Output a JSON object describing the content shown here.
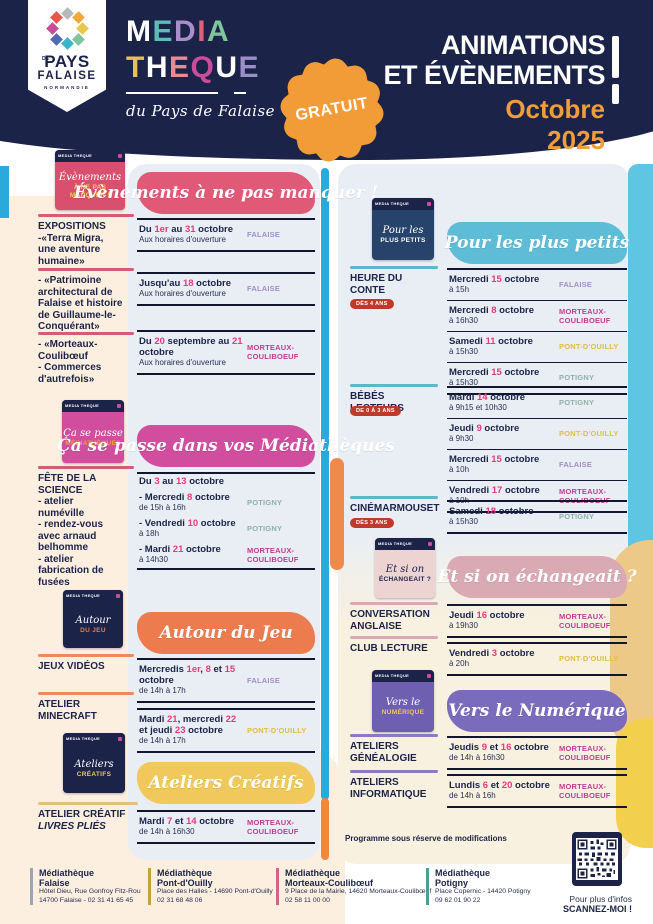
{
  "header": {
    "logo": {
      "de": "DE",
      "pays": "PAYS",
      "falaise": "FALAISE",
      "normandie": "NORMANDIE"
    },
    "brand": {
      "media": [
        [
          "M",
          "#ffffff"
        ],
        [
          "E",
          "#5bbcb8"
        ],
        [
          "D",
          "#a98fc9"
        ],
        [
          "I",
          "#e0607a"
        ],
        [
          "A",
          "#7fc49a"
        ]
      ],
      "theque": [
        [
          "T",
          "#e8c05a"
        ],
        [
          "H",
          "#ffffff"
        ],
        [
          "E",
          "#ea8a96"
        ],
        [
          "Q",
          "#c94d9b"
        ],
        [
          "U",
          "#ffffff"
        ],
        [
          "E",
          "#9b8fc7"
        ]
      ],
      "tagline": "du Pays de Falaise"
    },
    "gratuit_badge": "GRATUIT",
    "title_line1": "ANIMATIONS",
    "title_line2": "ET ÉVÈNEMENTS",
    "month": "Octobre",
    "year": "2025",
    "navy": "#1b2349",
    "accent_orange": "#f09d3a"
  },
  "highlight_color": "#e8397e",
  "loc_colors": {
    "FALAISE": "#9d8fc9",
    "MORTEAUX-COULIBOEUF": "#c23b92",
    "POTIGNY": "#8fb0a6",
    "PONT-D'OUILLY": "#e2bc43"
  },
  "thumbs": [
    {
      "bg": "#d94f6e",
      "line1": "Évènements",
      "line2": "À NE PAS MANQUER !",
      "line2_color": "#f5d14b"
    },
    {
      "bg": "#d14d9e",
      "line1": "Ça se passe",
      "line2": "MÉDIATHÈQUES",
      "line2_color": "#f29c38"
    },
    {
      "bg": "#1b2349",
      "line1": "Autour",
      "line2": "DU JEU",
      "line2_color": "#ee7d3e"
    },
    {
      "bg": "#1b2349",
      "line1": "Ateliers",
      "line2": "CRÉATIFS",
      "line2_color": "#f0c85b"
    },
    {
      "bg": "#27426b",
      "line1": "Pour les",
      "line2": "PLUS PETITS",
      "line2_color": "#ffffff"
    },
    {
      "bg": "#eed3d3",
      "line1": "Et si on",
      "line2": "ÉCHANGEAIT ?",
      "line2_color": "#1b2349",
      "dark_text": true
    },
    {
      "bg": "#6f5fb0",
      "line1": "Vers le",
      "line2": "NUMÉRIQUE",
      "line2_color": "#f0c85b"
    }
  ],
  "left_sidebar": [
    {
      "color": "#d85a78",
      "lines": [
        "EXPOSITIONS",
        "-«Terra Migra,",
        "une aventure",
        "humaine»"
      ]
    },
    {
      "color": "#d85a78",
      "lines": [
        "- «Patrimoine",
        "architectural de",
        "Falaise et histoire",
        "de Guillaume-le-",
        "Conquérant»"
      ]
    },
    {
      "color": "#d85a78",
      "lines": [
        "- «Morteaux-",
        "Coulibœuf",
        "- Commerces",
        "d'autrefois»"
      ]
    },
    {
      "color": "#d85a78",
      "lines": [
        "FÊTE DE LA",
        "SCIENCE",
        "- atelier",
        "numéville",
        "- rendez-vous",
        "avec arnaud",
        "belhomme",
        "- atelier",
        "fabrication de",
        "fusées"
      ]
    },
    {
      "color": "#ec8a5d",
      "lines": [
        "JEUX VIDÉOS"
      ]
    },
    {
      "color": "#ec8a5d",
      "lines": [
        "ATELIER",
        "MINECRAFT"
      ]
    },
    {
      "color": "#e5c07a",
      "lines": [
        "ATELIER CRÉATIF",
        "LIVRES PLIÉS"
      ],
      "italic_lines": [
        1
      ]
    }
  ],
  "right_sidebar": [
    {
      "color": "#5bb7c9",
      "lines": [
        "HEURE DU",
        "CONTE"
      ],
      "badge": "DÈS 4 ANS"
    },
    {
      "color": "#5bb7c9",
      "lines": [
        "BÉBÉS LECTEURS"
      ],
      "badge": "DE 0 À 3 ANS"
    },
    {
      "color": "#5bb7c9",
      "lines": [
        "CINÉMARMOUSET"
      ],
      "badge": "DÈS 3 ANS"
    },
    {
      "color": "#d9a9b4",
      "lines": [
        "CONVERSATION",
        "ANGLAISE"
      ]
    },
    {
      "color": "#d9a9b4",
      "lines": [
        "CLUB LECTURE"
      ]
    },
    {
      "color": "#8a7ac5",
      "lines": [
        "ATELIERS",
        "GÉNÉALOGIE"
      ]
    },
    {
      "color": "#8a7ac5",
      "lines": [
        "ATELIERS",
        "INFORMATIQUE"
      ]
    }
  ],
  "left_sections": [
    {
      "banner": {
        "text": "Évènements à ne pas manquer !",
        "color": "#e05a78"
      },
      "groups": [
        [
          {
            "date": "Du [1er] au [31] octobre",
            "time": "Aux horaires d'ouverture",
            "loc": "FALAISE"
          }
        ],
        [
          {
            "date": "Jusqu'au [18] octobre",
            "time": "Aux horaires d'ouverture",
            "loc": "FALAISE"
          }
        ],
        [
          {
            "date": "Du [20] septembre au [21] octobre",
            "time": "Aux horaires d'ouverture",
            "loc": "MORTEAUX-COULIBOEUF"
          }
        ]
      ]
    },
    {
      "banner": {
        "text": "Ça se passe dans vos Médiathèques",
        "color": "#d14d9e"
      },
      "groups": [
        [
          {
            "date": "Du [3] au [13] octobre"
          },
          {
            "date": "- Mercredi [8] octobre",
            "time": "de 15h à 16h",
            "loc": "POTIGNY"
          },
          {
            "date": "- Vendredi [10] octobre",
            "time": "à 18h",
            "loc": "POTIGNY"
          },
          {
            "date": "- Mardi [21] octobre",
            "time": "à 14h30",
            "loc": "MORTEAUX-COULIBOEUF"
          }
        ]
      ]
    },
    {
      "banner": {
        "text": "Autour du Jeu",
        "color": "#ec7b4d"
      },
      "groups": [
        [
          {
            "date": "Mercredis [1er], [8] et [15] octobre",
            "time": "de 14h à 17h",
            "loc": "FALAISE"
          }
        ],
        [
          {
            "date": "Mardi [21], mercredi [22] et jeudi [23] octobre",
            "time": "de 14h à 17h",
            "loc": "PONT-D'OUILLY"
          }
        ]
      ]
    },
    {
      "banner": {
        "text": "Ateliers Créatifs",
        "color": "#f0c85b"
      },
      "groups": [
        [
          {
            "date": "Mardi [7] et [14] octobre",
            "time": "de 14h à 16h30",
            "loc": "MORTEAUX-COULIBOEUF"
          }
        ]
      ]
    }
  ],
  "right_sections": [
    {
      "banner": {
        "text": "Pour les plus petits",
        "color": "#5fbcd6"
      },
      "groups": [
        [
          {
            "date": "Mercredi [15] octobre",
            "time": "à 15h",
            "loc": "FALAISE"
          },
          {
            "date": "Mercredi [8] octobre",
            "time": "à 16h30",
            "loc": "MORTEAUX-COULIBOEUF"
          },
          {
            "date": "Samedi [11] octobre",
            "time": "à 15h30",
            "loc": "PONT-D'OUILLY"
          },
          {
            "date": "Mercredi [15] octobre",
            "time": "à 15h30",
            "loc": "POTIGNY"
          }
        ],
        [
          {
            "date": "Mardi [14] octobre",
            "time": "à 9h15 et 10h30",
            "loc": "POTIGNY"
          },
          {
            "date": "Jeudi [9] octobre",
            "time": "à 9h30",
            "loc": "PONT-D'OUILLY"
          },
          {
            "date": "Mercredi [15] octobre",
            "time": "à 10h",
            "loc": "FALAISE"
          },
          {
            "date": "Vendredi [17] octobre",
            "time": "à 10h",
            "loc": "MORTEAUX-COULIBOEUF"
          }
        ],
        [
          {
            "date": "Samedi [18] octobre",
            "time": "à 15h30",
            "loc": "POTIGNY"
          }
        ]
      ]
    },
    {
      "banner": {
        "text": "Et si on échangeait ?",
        "color": "#d9a9b4"
      },
      "groups": [
        [
          {
            "date": "Jeudi [16] octobre",
            "time": "à 19h30",
            "loc": "MORTEAUX-COULIBOEUF"
          }
        ],
        [
          {
            "date": "Vendredi [3] octobre",
            "time": "à 20h",
            "loc": "PONT-D'OUILLY"
          }
        ]
      ]
    },
    {
      "banner": {
        "text": "Vers le Numérique",
        "color": "#7b6bbd"
      },
      "groups": [
        [
          {
            "date": "Jeudis [9] et [16] octobre",
            "time": "de 14h à 16h30",
            "loc": "MORTEAUX-COULIBOEUF"
          }
        ],
        [
          {
            "date": "Lundis [6] et [20] octobre",
            "time": "de 14h à 16h",
            "loc": "MORTEAUX-COULIBOEUF"
          }
        ]
      ]
    }
  ],
  "notes": {
    "programme": "Programme sous réserve de modifications"
  },
  "scan": {
    "line1": "Pour plus d'infos",
    "line2": "SCANNEZ-MOI !"
  },
  "footer": {
    "title": "Médiathèque",
    "columns": [
      {
        "color": "#9aa5b5",
        "name": "Falaise",
        "lines": [
          "Hôtel Dieu, Rue Gonfroy Fitz-Rou",
          "14700 Falaise - 02 31 41 65 45"
        ]
      },
      {
        "color": "#c9a13b",
        "name": "Pont-d'Ouilly",
        "lines": [
          "Place des Halles - 14690 Pont-d'Ouilly",
          "02 31 68 48 06"
        ]
      },
      {
        "color": "#d4608c",
        "name": "Morteaux-Coulibœuf",
        "lines": [
          "9 Place de la Mairie, 14620 Morteaux-Coulibœuf",
          "02 58 11 00 00"
        ]
      },
      {
        "color": "#4a9e98",
        "name": "Potigny",
        "lines": [
          "Place Copernic - 14420 Potigny",
          "09 62 01 90 22"
        ]
      }
    ]
  }
}
